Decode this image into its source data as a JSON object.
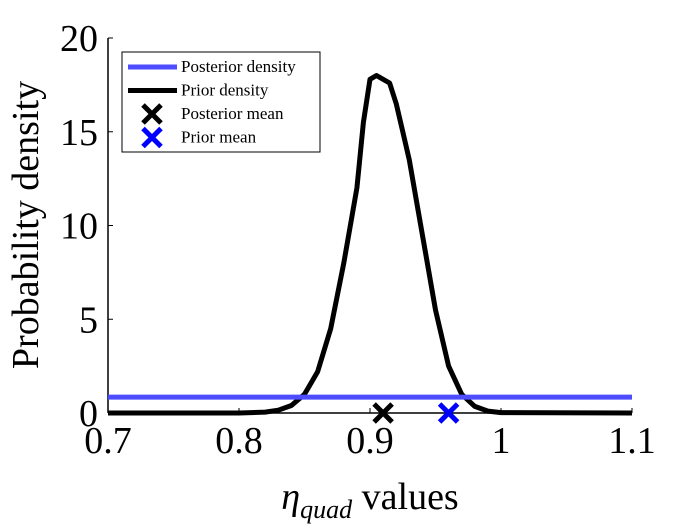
{
  "chart_data": {
    "type": "line",
    "title": "",
    "ylabel": "Probability density",
    "xlabel_symbol": "η",
    "xlabel_subscript": "quad",
    "xlabel_suffix": " values",
    "xlim": [
      0.7,
      1.1
    ],
    "ylim": [
      0,
      20
    ],
    "x_ticks": [
      0.7,
      0.8,
      0.9,
      1.0,
      1.1
    ],
    "x_tick_labels": [
      "0.7",
      "0.8",
      "0.9",
      "1",
      "1.1"
    ],
    "y_ticks": [
      0,
      5,
      10,
      15,
      20
    ],
    "y_tick_labels": [
      "0",
      "5",
      "10",
      "15",
      "20"
    ],
    "grid": false,
    "legend_position": "top-left",
    "series": [
      {
        "name": "Posterior density",
        "kind": "line",
        "color": "#4d4dff",
        "x": [
          0.7,
          1.1
        ],
        "y": [
          0.85,
          0.85
        ]
      },
      {
        "name": "Prior density",
        "kind": "line",
        "color": "#000000",
        "x": [
          0.7,
          0.8,
          0.82,
          0.83,
          0.84,
          0.85,
          0.86,
          0.87,
          0.88,
          0.89,
          0.895,
          0.9,
          0.905,
          0.91,
          0.915,
          0.92,
          0.925,
          0.93,
          0.94,
          0.95,
          0.96,
          0.97,
          0.98,
          0.99,
          1.0,
          1.1
        ],
        "y": [
          0,
          0,
          0.05,
          0.15,
          0.4,
          1.0,
          2.2,
          4.5,
          8.0,
          12.0,
          15.5,
          17.8,
          18.0,
          17.8,
          17.6,
          16.5,
          15.0,
          13.5,
          9.5,
          5.5,
          2.5,
          1.0,
          0.35,
          0.1,
          0.02,
          0
        ]
      },
      {
        "name": "Posterior mean",
        "kind": "marker",
        "color": "#000000",
        "x": [
          0.91
        ],
        "y": [
          0
        ]
      },
      {
        "name": "Prior mean",
        "kind": "marker",
        "color": "#0000ff",
        "x": [
          0.96
        ],
        "y": [
          0
        ]
      }
    ]
  }
}
